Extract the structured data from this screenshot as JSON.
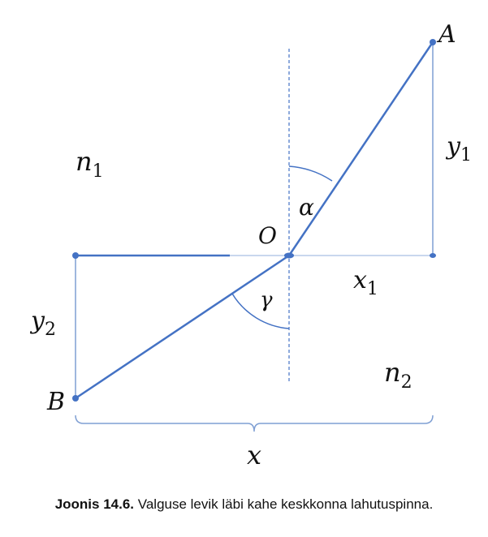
{
  "labels": {
    "A": "A",
    "B": "B",
    "O": "O",
    "alpha": "α",
    "gamma": "γ",
    "n1": {
      "base": "n",
      "sub": "1"
    },
    "n2": {
      "base": "n",
      "sub": "2"
    },
    "x1": {
      "base": "x",
      "sub": "1"
    },
    "y1": {
      "base": "y",
      "sub": "1"
    },
    "y2": {
      "base": "y",
      "sub": "2"
    },
    "x": "x"
  },
  "caption": {
    "bold": "Joonis 14.6.",
    "text": " Valguse levik läbi kahe keskkonna lahutuspinna."
  },
  "colors": {
    "ray": "#4472c4",
    "brace": "#7f9fd3",
    "normal": "#4472c4",
    "text": "#111111"
  }
}
